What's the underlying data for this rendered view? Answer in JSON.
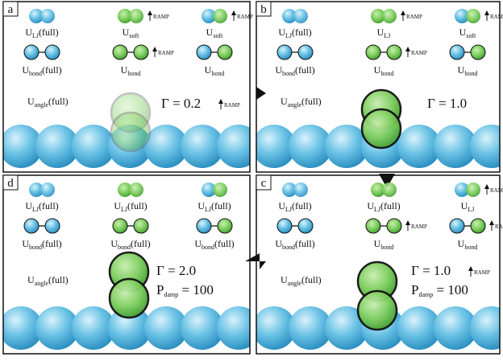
{
  "panels": [
    {
      "letter": "a",
      "pairs": [
        {
          "sym": "U",
          "sub": "LJ",
          "suffix": "(full)"
        },
        {
          "sym": "U",
          "sub": "soft",
          "suffix": "",
          "ramp": "RAMP"
        },
        {
          "sym": "U",
          "sub": "soft",
          "suffix": "",
          "ramp": "RAMP"
        }
      ],
      "bonds": [
        {
          "sym": "U",
          "sub": "bond",
          "suffix": "(full)"
        },
        {
          "sym": "U",
          "sub": "bond",
          "suffix": "",
          "ramp": "RAMP"
        },
        {
          "sym": "U",
          "sub": "bond",
          "suffix": ""
        }
      ],
      "angle": {
        "sym": "U",
        "sub": "angle",
        "suffix": "(full)"
      },
      "gamma": "Γ = 0.2",
      "gamma_ramp": "RAMP"
    },
    {
      "letter": "b",
      "pairs": [
        {
          "sym": "U",
          "sub": "LJ",
          "suffix": "(full)"
        },
        {
          "sym": "U",
          "sub": "LJ",
          "suffix": "",
          "ramp": "RAMP"
        },
        {
          "sym": "U",
          "sub": "soft",
          "suffix": "",
          "ramp": "RAMP"
        }
      ],
      "bonds": [
        {
          "sym": "U",
          "sub": "bond",
          "suffix": "(full)"
        },
        {
          "sym": "U",
          "sub": "bond",
          "suffix": "",
          "ramp": "RAMP"
        },
        {
          "sym": "U",
          "sub": "bond",
          "suffix": ""
        }
      ],
      "angle": {
        "sym": "U",
        "sub": "angle",
        "suffix": "(full)"
      },
      "gamma": "Γ = 1.0"
    },
    {
      "letter": "c",
      "pairs": [
        {
          "sym": "U",
          "sub": "LJ",
          "suffix": "(full)"
        },
        {
          "sym": "U",
          "sub": "LJ",
          "suffix": "(full)"
        },
        {
          "sym": "U",
          "sub": "LJ",
          "suffix": "",
          "ramp": "RAMP"
        }
      ],
      "bonds": [
        {
          "sym": "U",
          "sub": "bond",
          "suffix": "(full)"
        },
        {
          "sym": "U",
          "sub": "bond",
          "suffix": "",
          "ramp": "RAMP"
        },
        {
          "sym": "U",
          "sub": "bond",
          "suffix": "",
          "ramp": "RAMP"
        }
      ],
      "angle": {
        "sym": "U",
        "sub": "angle",
        "suffix": "(full)"
      },
      "gamma": "Γ = 1.0",
      "gamma_ramp": "RAMP",
      "pdamp": {
        "sym": "P",
        "sub": "damp",
        "suffix": " = 100"
      }
    },
    {
      "letter": "d",
      "pairs": [
        {
          "sym": "U",
          "sub": "LJ",
          "suffix": "(full)"
        },
        {
          "sym": "U",
          "sub": "LJ",
          "suffix": "(full)"
        },
        {
          "sym": "U",
          "sub": "LJ",
          "suffix": "(full)"
        }
      ],
      "bonds": [
        {
          "sym": "U",
          "sub": "bond",
          "suffix": "(full)"
        },
        {
          "sym": "U",
          "sub": "bond",
          "suffix": "(full)"
        },
        {
          "sym": "U",
          "sub": "bond",
          "suffix": "(full)"
        }
      ],
      "angle": {
        "sym": "U",
        "sub": "angle",
        "suffix": "(full)"
      },
      "gamma": "Γ = 2.0",
      "pdamp": {
        "sym": "P",
        "sub": "damp",
        "suffix": " = 100"
      }
    }
  ]
}
